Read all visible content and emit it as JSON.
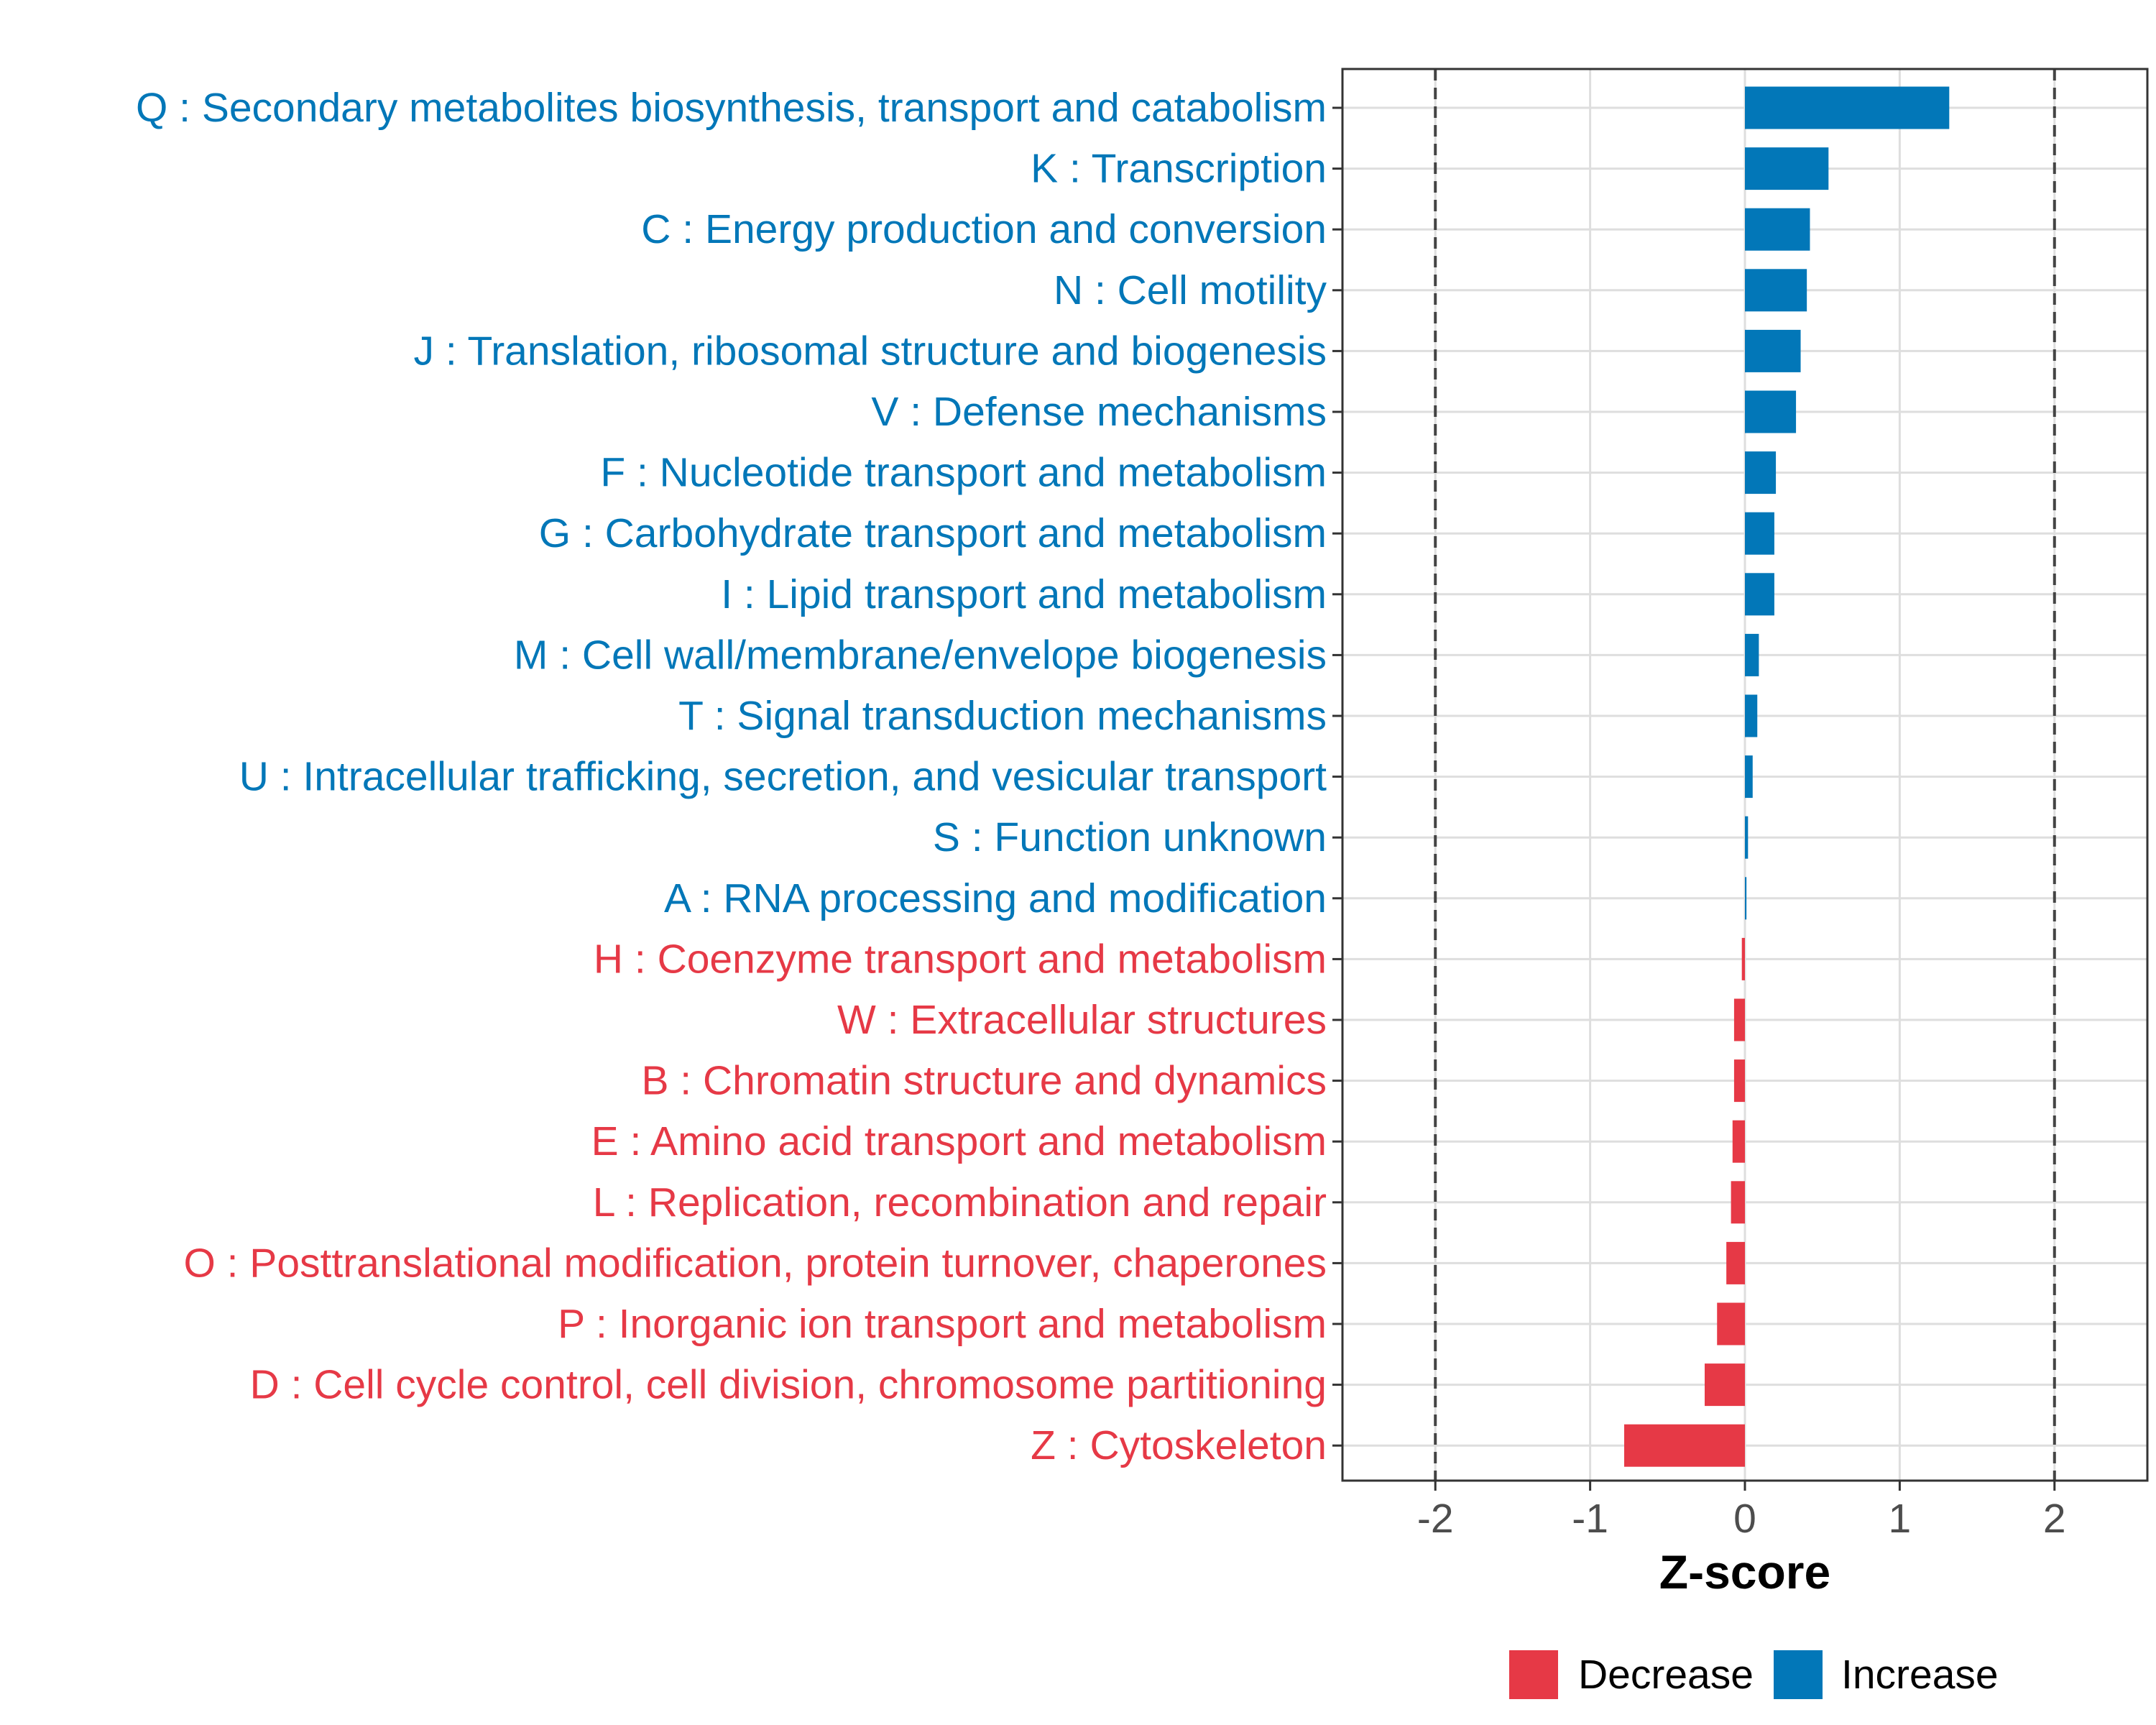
{
  "chart_data": {
    "type": "bar",
    "orientation": "horizontal",
    "title": "",
    "xlabel": "Z-score",
    "ylabel": "",
    "xlim": [
      -2.6,
      2.6
    ],
    "xticks": [
      -2,
      -1,
      0,
      1,
      2
    ],
    "xtick_labels": [
      "-2",
      "-1",
      "0",
      "1",
      "2"
    ],
    "reference_lines": [
      -2,
      2
    ],
    "grid": true,
    "legend_position": "bottom",
    "categories": [
      "Q : Secondary metabolites biosynthesis, transport and catabolism",
      "K : Transcription",
      "C : Energy production and conversion",
      "N : Cell motility",
      "J : Translation, ribosomal structure and biogenesis",
      "V : Defense mechanisms",
      "F : Nucleotide transport and metabolism",
      "G : Carbohydrate transport and metabolism",
      "I : Lipid transport and metabolism",
      "M : Cell wall/membrane/envelope biogenesis",
      "T : Signal transduction mechanisms",
      "U : Intracellular trafficking, secretion, and vesicular transport",
      "S : Function unknown",
      "A : RNA processing and modification",
      "H : Coenzyme transport and metabolism",
      "W : Extracellular structures",
      "B : Chromatin structure and dynamics",
      "E : Amino acid transport and metabolism",
      "L : Replication, recombination and repair",
      "O : Posttranslational modification, protein turnover, chaperones",
      "P : Inorganic ion transport and metabolism",
      "D : Cell cycle control, cell division, chromosome partitioning",
      "Z : Cytoskeleton"
    ],
    "values": [
      1.32,
      0.54,
      0.42,
      0.4,
      0.36,
      0.33,
      0.2,
      0.19,
      0.19,
      0.09,
      0.08,
      0.05,
      0.02,
      0.01,
      -0.02,
      -0.07,
      -0.07,
      -0.08,
      -0.09,
      -0.12,
      -0.18,
      -0.26,
      -0.78
    ],
    "groups": [
      "Increase",
      "Increase",
      "Increase",
      "Increase",
      "Increase",
      "Increase",
      "Increase",
      "Increase",
      "Increase",
      "Increase",
      "Increase",
      "Increase",
      "Increase",
      "Increase",
      "Decrease",
      "Decrease",
      "Decrease",
      "Decrease",
      "Decrease",
      "Decrease",
      "Decrease",
      "Decrease",
      "Decrease"
    ],
    "colors": {
      "Increase": "#0277b8",
      "Decrease": "#e63946"
    },
    "legend": [
      {
        "name": "Decrease",
        "color": "#e63946"
      },
      {
        "name": "Increase",
        "color": "#0277b8"
      }
    ]
  }
}
